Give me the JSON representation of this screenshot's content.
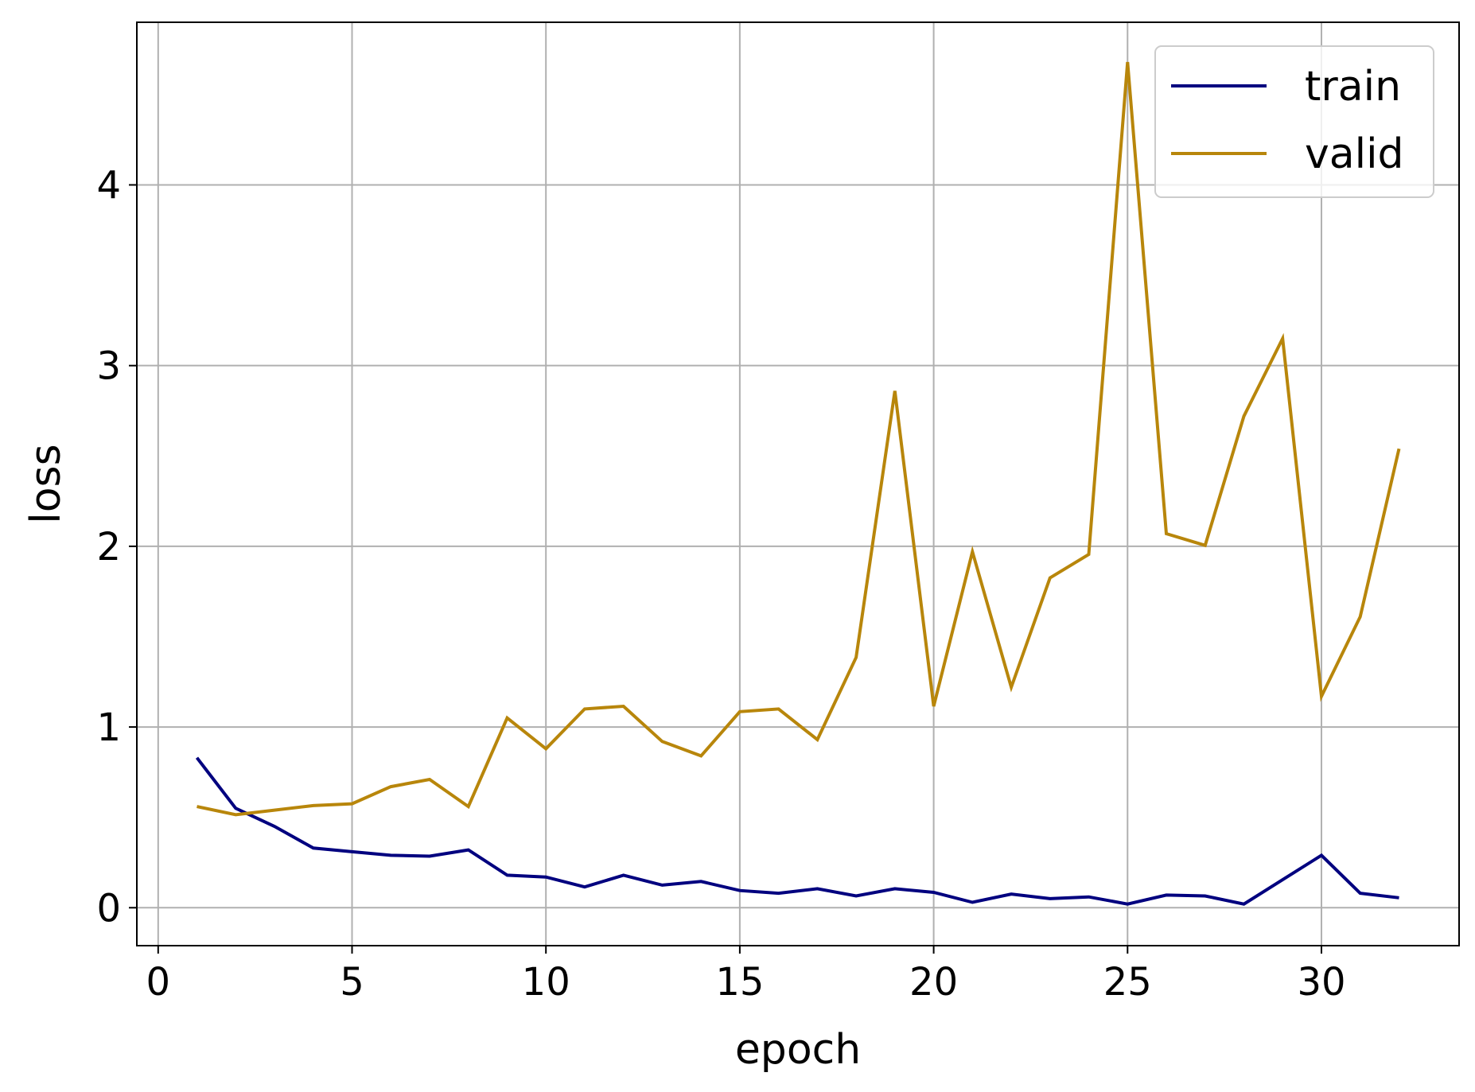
{
  "chart_data": {
    "type": "line",
    "xlabel": "epoch",
    "ylabel": "loss",
    "xlim": [
      -0.55,
      33.55
    ],
    "ylim": [
      -0.21,
      4.9
    ],
    "xticks": [
      0,
      5,
      10,
      15,
      20,
      25,
      30
    ],
    "yticks": [
      0,
      1,
      2,
      3,
      4
    ],
    "grid": true,
    "legend_position": "top-right",
    "x": [
      1,
      2,
      3,
      4,
      5,
      6,
      7,
      8,
      9,
      10,
      11,
      12,
      13,
      14,
      15,
      16,
      17,
      18,
      19,
      20,
      21,
      22,
      23,
      24,
      25,
      26,
      27,
      28,
      29,
      30,
      31,
      32
    ],
    "series": [
      {
        "name": "train",
        "color": "#00007f",
        "values": [
          0.83,
          0.55,
          0.45,
          0.33,
          0.31,
          0.29,
          0.285,
          0.32,
          0.18,
          0.17,
          0.115,
          0.18,
          0.125,
          0.145,
          0.095,
          0.08,
          0.105,
          0.065,
          0.105,
          0.085,
          0.03,
          0.075,
          0.05,
          0.06,
          0.02,
          0.07,
          0.065,
          0.02,
          0.155,
          0.29,
          0.08,
          0.055
        ]
      },
      {
        "name": "valid",
        "color": "#b8860b",
        "values": [
          0.56,
          0.515,
          0.54,
          0.565,
          0.575,
          0.67,
          0.71,
          0.56,
          1.05,
          0.88,
          1.1,
          1.115,
          0.92,
          0.84,
          1.085,
          1.1,
          0.93,
          1.385,
          2.86,
          1.115,
          1.97,
          1.22,
          1.825,
          1.955,
          4.68,
          2.07,
          2.005,
          2.72,
          3.15,
          1.17,
          1.61,
          2.54
        ]
      }
    ]
  }
}
